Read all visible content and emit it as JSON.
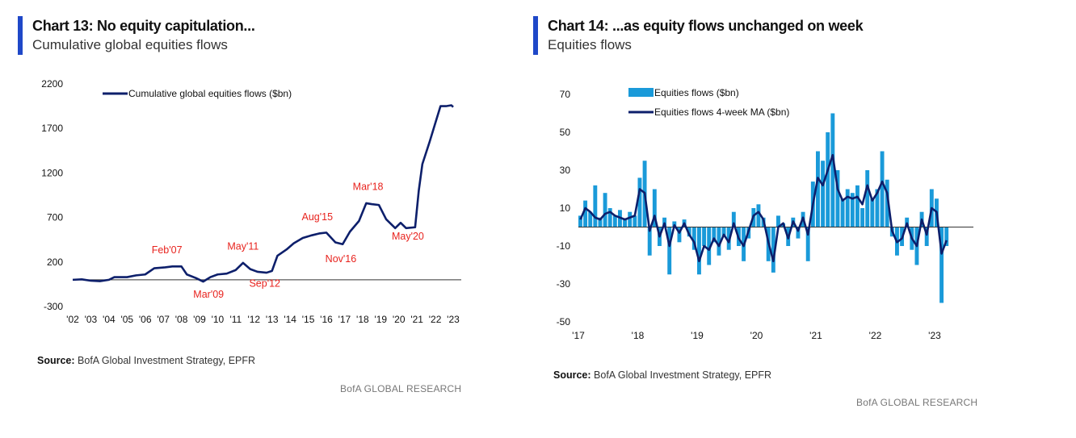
{
  "left": {
    "title": "Chart 13: No equity capitulation...",
    "subtitle": "Cumulative global equities flows",
    "source_label": "Source:",
    "source_text": "BofA Global Investment Strategy, EPFR",
    "brand": "BofA GLOBAL RESEARCH"
  },
  "right": {
    "title": "Chart 14: ...as equity flows unchanged on week",
    "subtitle": "Equities flows",
    "source_label": "Source:",
    "source_text": "BofA Global Investment Strategy, EPFR",
    "brand": "BofA GLOBAL RESEARCH"
  },
  "colors": {
    "accent": "#1f48c8",
    "line": "#0d1f6b",
    "bar": "#1a9ad9",
    "annotation": "#e8231e"
  },
  "chart_data": [
    {
      "type": "line",
      "title": "Chart 13: No equity capitulation...",
      "ylim": [
        -300,
        2200
      ],
      "yticks": [
        -300,
        200,
        700,
        1200,
        1700,
        2200
      ],
      "xticks": [
        "'02",
        "'03",
        "'04",
        "'05",
        "'06",
        "'07",
        "'08",
        "'09",
        "'10",
        "'11",
        "'12",
        "'13",
        "'14",
        "'15",
        "'16",
        "'17",
        "'18",
        "'19",
        "'20",
        "'21",
        "'22",
        "'23"
      ],
      "xlim": [
        2002,
        2023
      ],
      "legend": "top-left",
      "series": [
        {
          "name": "Cumulative global equities flows ($bn)",
          "x": [
            2002.0,
            2002.5,
            2003.0,
            2003.5,
            2004.0,
            2004.3,
            2005.0,
            2005.5,
            2006.0,
            2006.5,
            2007.1,
            2007.5,
            2008.0,
            2008.3,
            2008.8,
            2009.2,
            2009.6,
            2010.0,
            2010.5,
            2011.0,
            2011.4,
            2011.8,
            2012.2,
            2012.7,
            2013.0,
            2013.3,
            2013.8,
            2014.2,
            2014.7,
            2015.2,
            2015.6,
            2016.0,
            2016.5,
            2016.9,
            2017.3,
            2017.8,
            2018.2,
            2018.5,
            2018.9,
            2019.3,
            2019.8,
            2020.1,
            2020.4,
            2020.9,
            2021.1,
            2021.3,
            2021.7,
            2022.0,
            2022.3,
            2022.6,
            2022.9,
            2023.0
          ],
          "y": [
            0,
            5,
            -10,
            -15,
            0,
            30,
            30,
            50,
            60,
            130,
            140,
            150,
            150,
            60,
            20,
            -20,
            30,
            60,
            70,
            110,
            190,
            120,
            90,
            80,
            100,
            270,
            340,
            410,
            470,
            500,
            520,
            530,
            420,
            400,
            540,
            660,
            860,
            850,
            840,
            680,
            580,
            640,
            580,
            590,
            1000,
            1300,
            1550,
            1750,
            1950,
            1950,
            1960,
            1940
          ]
        }
      ],
      "annotations": [
        {
          "label": "Feb'07",
          "x": 2007.2,
          "y": 300
        },
        {
          "label": "Mar'09",
          "x": 2009.5,
          "y": -200
        },
        {
          "label": "May'11",
          "x": 2011.4,
          "y": 340
        },
        {
          "label": "Sep'12",
          "x": 2012.6,
          "y": -80
        },
        {
          "label": "Aug'15",
          "x": 2015.5,
          "y": 670
        },
        {
          "label": "Nov'16",
          "x": 2016.8,
          "y": 200
        },
        {
          "label": "Mar'18",
          "x": 2018.3,
          "y": 1010
        },
        {
          "label": "May'20",
          "x": 2020.5,
          "y": 450
        }
      ]
    },
    {
      "type": "bar",
      "title": "Chart 14: ...as equity flows unchanged on week",
      "ylim": [
        -50,
        70
      ],
      "yticks": [
        -50,
        -30,
        -10,
        10,
        30,
        50,
        70
      ],
      "xticks": [
        "'17",
        "'18",
        "'19",
        "'20",
        "'21",
        "'22",
        "'23"
      ],
      "xlim": [
        2017,
        2023.65
      ],
      "legend": "top-left",
      "series": [
        {
          "name": "Equities flows ($bn)",
          "kind": "bar",
          "start": 2017,
          "step": "month",
          "values": [
            6,
            14,
            8,
            22,
            5,
            18,
            10,
            6,
            9,
            4,
            8,
            6,
            26,
            35,
            -15,
            20,
            -10,
            5,
            -25,
            3,
            -8,
            4,
            -5,
            -12,
            -25,
            -10,
            -20,
            -8,
            -15,
            -5,
            -12,
            8,
            -10,
            -18,
            -6,
            10,
            12,
            5,
            -18,
            -24,
            6,
            2,
            -10,
            5,
            -6,
            8,
            -18,
            24,
            40,
            35,
            50,
            60,
            30,
            15,
            20,
            18,
            22,
            10,
            30,
            15,
            20,
            40,
            25,
            -5,
            -15,
            -10,
            5,
            -12,
            -20,
            8,
            -10,
            20,
            15,
            -40,
            -10
          ]
        },
        {
          "name": "Equities flows 4-week MA ($bn)",
          "kind": "line",
          "start": 2017,
          "step": "month",
          "values": [
            4,
            10,
            8,
            5,
            4,
            7,
            8,
            6,
            5,
            4,
            5,
            6,
            20,
            18,
            -2,
            6,
            -5,
            2,
            -10,
            1,
            -3,
            2,
            -4,
            -8,
            -18,
            -10,
            -12,
            -6,
            -10,
            -4,
            -8,
            2,
            -6,
            -10,
            -2,
            6,
            8,
            4,
            -8,
            -18,
            0,
            2,
            -6,
            3,
            -2,
            5,
            -4,
            12,
            26,
            22,
            30,
            38,
            20,
            14,
            16,
            15,
            16,
            12,
            22,
            14,
            18,
            24,
            18,
            -2,
            -8,
            -6,
            2,
            -6,
            -10,
            4,
            -4,
            10,
            8,
            -14,
            -7
          ]
        }
      ]
    }
  ]
}
